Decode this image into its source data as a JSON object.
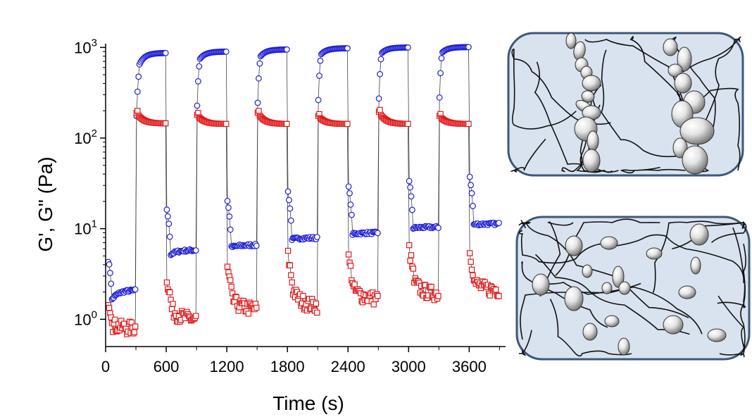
{
  "chart_data": {
    "type": "scatter",
    "title": "",
    "xlabel": "Time (s)",
    "ylabel": "G', G\" (Pa)",
    "xscale": "linear",
    "yscale": "log",
    "xlim": [
      0,
      3960
    ],
    "ylim": [
      0.5,
      1100
    ],
    "x_ticks": [
      0,
      600,
      1200,
      1800,
      2400,
      3000,
      3600
    ],
    "x_tick_labels": [
      "0",
      "600",
      "1200",
      "1800",
      "2400",
      "3000",
      "3600"
    ],
    "y_ticks": [
      1,
      10,
      100,
      1000
    ],
    "y_tick_labels": [
      {
        "base": "10",
        "exp": "0"
      },
      {
        "base": "10",
        "exp": "1"
      },
      {
        "base": "10",
        "exp": "2"
      },
      {
        "base": "10",
        "exp": "3"
      }
    ],
    "grid": false,
    "legend": "none",
    "cycle_period_s": 600,
    "high_strain_duration_s": 300,
    "series": [
      {
        "marker": "circle",
        "color": "#1f1fd6",
        "low_strain_plateau": [
          {
            "start": 20,
            "end": 300,
            "from": 1.3,
            "to": 2.1
          },
          {
            "start": 600,
            "end": 900,
            "from": 4.8,
            "to": 5.8
          },
          {
            "start": 1200,
            "end": 1500,
            "from": 6.0,
            "to": 6.6
          },
          {
            "start": 1800,
            "end": 2100,
            "from": 7.5,
            "to": 7.9
          },
          {
            "start": 2400,
            "end": 2700,
            "from": 8.5,
            "to": 9.0
          },
          {
            "start": 3000,
            "end": 3300,
            "from": 10.0,
            "to": 10.4
          },
          {
            "start": 3600,
            "end": 3900,
            "from": 11.0,
            "to": 11.3
          }
        ],
        "high_strain_plateau": [
          {
            "start": 300,
            "end": 600,
            "from": 500,
            "to": 870
          },
          {
            "start": 900,
            "end": 1200,
            "from": 650,
            "to": 900
          },
          {
            "start": 1500,
            "end": 1800,
            "from": 700,
            "to": 950
          },
          {
            "start": 2100,
            "end": 2400,
            "from": 750,
            "to": 980
          },
          {
            "start": 2700,
            "end": 3000,
            "from": 780,
            "to": 1000
          },
          {
            "start": 3300,
            "end": 3600,
            "from": 800,
            "to": 1010
          }
        ]
      },
      {
        "marker": "square",
        "color": "#e01a1a",
        "low_strain_plateau": [
          {
            "start": 20,
            "end": 300,
            "from": 0.95,
            "to": 0.8
          },
          {
            "start": 600,
            "end": 900,
            "from": 1.6,
            "to": 1.0
          },
          {
            "start": 1200,
            "end": 1500,
            "from": 2.0,
            "to": 1.3
          },
          {
            "start": 1800,
            "end": 2100,
            "from": 2.8,
            "to": 1.4
          },
          {
            "start": 2400,
            "end": 2700,
            "from": 2.6,
            "to": 1.7
          },
          {
            "start": 3000,
            "end": 3300,
            "from": 3.3,
            "to": 1.9
          },
          {
            "start": 3600,
            "end": 3900,
            "from": 3.0,
            "to": 2.1
          }
        ],
        "high_strain_plateau": [
          {
            "start": 300,
            "end": 600,
            "from": 190,
            "to": 145
          },
          {
            "start": 900,
            "end": 1200,
            "from": 180,
            "to": 143
          },
          {
            "start": 1500,
            "end": 1800,
            "from": 190,
            "to": 143
          },
          {
            "start": 2100,
            "end": 2400,
            "from": 175,
            "to": 143
          },
          {
            "start": 2700,
            "end": 3000,
            "from": 195,
            "to": 143
          },
          {
            "start": 3300,
            "end": 3600,
            "from": 175,
            "to": 143
          }
        ]
      }
    ],
    "insets": [
      {
        "position": "top-right",
        "state": "particles aggregated into chains",
        "background": "#d9e3ef",
        "border": "#3e5878"
      },
      {
        "position": "bottom-right",
        "state": "particles dispersed in network",
        "background": "#d9e3ef",
        "border": "#3e5878"
      }
    ]
  }
}
